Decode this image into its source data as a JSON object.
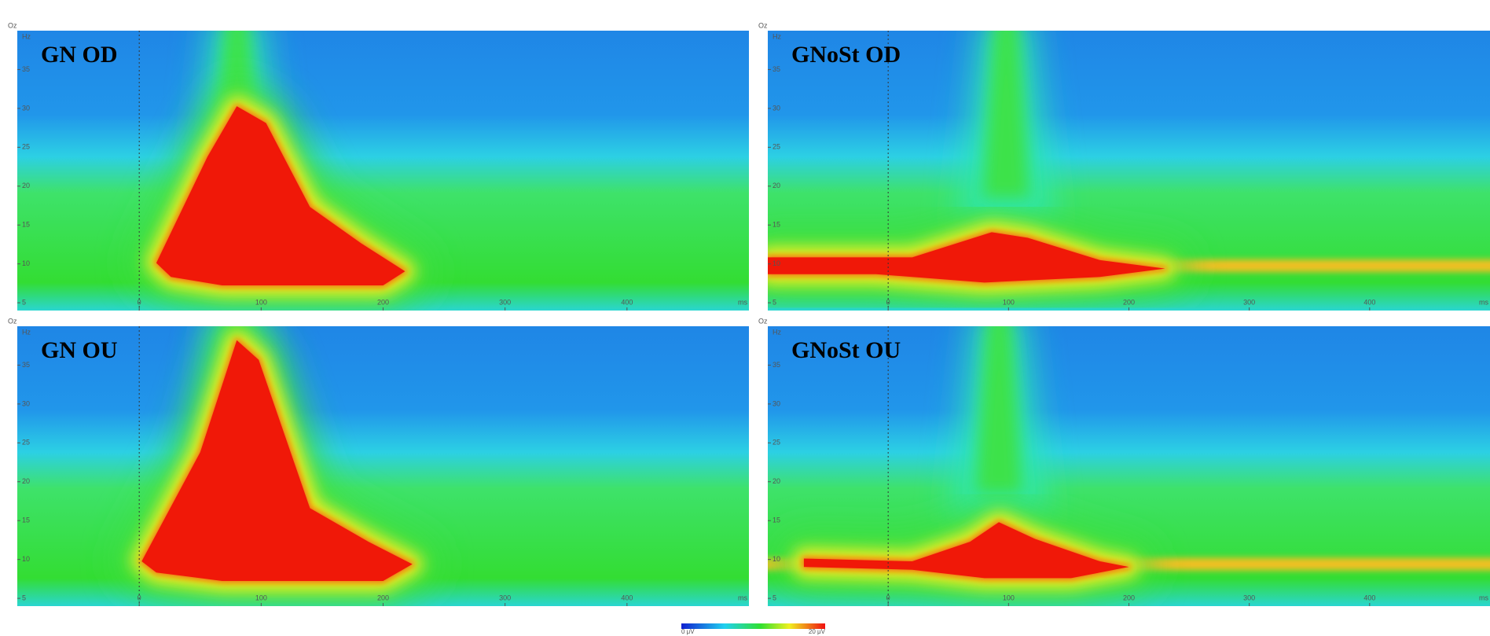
{
  "panels": [
    {
      "electrode": "Oz",
      "title": "GN OD",
      "y_unit": "Hz",
      "x_unit": "ms"
    },
    {
      "electrode": "Oz",
      "title": "GNoSt OD",
      "y_unit": "Hz",
      "x_unit": "ms"
    },
    {
      "electrode": "Oz",
      "title": "GN OU",
      "y_unit": "Hz",
      "x_unit": "ms"
    },
    {
      "electrode": "Oz",
      "title": "GNoSt OU",
      "y_unit": "Hz",
      "x_unit": "ms"
    }
  ],
  "axes": {
    "xlim": [
      -100,
      500
    ],
    "ylim": [
      4,
      40
    ],
    "xticks": [
      0,
      100,
      200,
      300,
      400
    ],
    "yticks": [
      5,
      10,
      15,
      20,
      25,
      30,
      35
    ]
  },
  "colorbar": {
    "min_label": "0 μV",
    "max_label": "20 μV"
  }
}
